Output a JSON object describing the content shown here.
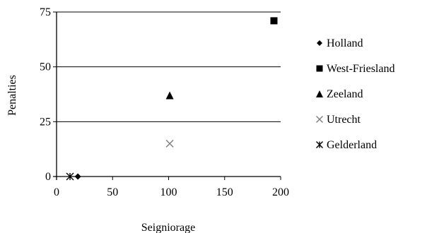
{
  "chart_data": {
    "type": "scatter",
    "title": "",
    "xlabel": "Seigniorage",
    "ylabel": "Penalties",
    "xlim": [
      0,
      200
    ],
    "ylim": [
      0,
      75
    ],
    "xticks": [
      "0",
      "50",
      "100",
      "150",
      "200"
    ],
    "yticks": [
      "0",
      "25",
      "50",
      "75"
    ],
    "grid": "horizontal",
    "legend_position": "right",
    "series": [
      {
        "name": "Holland",
        "marker": "diamond",
        "color": "#000000",
        "x": [
          19
        ],
        "y": [
          0
        ]
      },
      {
        "name": "West-Friesland",
        "marker": "square",
        "color": "#000000",
        "x": [
          194
        ],
        "y": [
          71
        ]
      },
      {
        "name": "Zeeland",
        "marker": "triangle",
        "color": "#000000",
        "x": [
          101
        ],
        "y": [
          37
        ]
      },
      {
        "name": "Utrecht",
        "marker": "x",
        "color": "#808080",
        "x": [
          101
        ],
        "y": [
          15
        ]
      },
      {
        "name": "Gelderland",
        "marker": "star",
        "color": "#000000",
        "x": [
          12
        ],
        "y": [
          0
        ]
      }
    ]
  }
}
